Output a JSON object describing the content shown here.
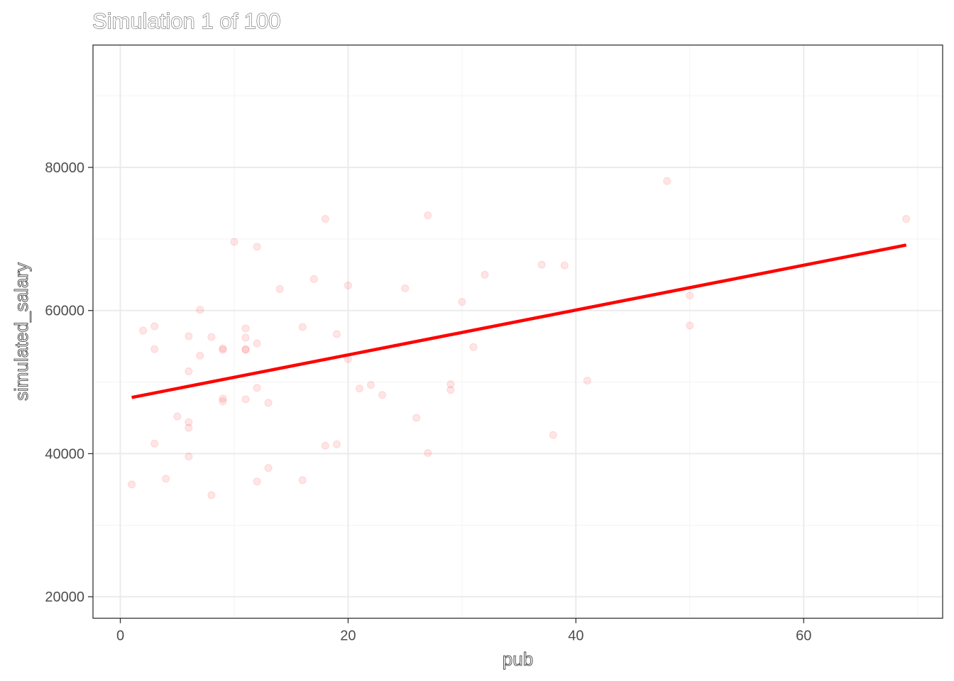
{
  "chart_data": {
    "type": "scatter",
    "title": "Simulation 1 of 100",
    "xlabel": "pub",
    "ylabel": "simulated_salary",
    "xlim": [
      -2.4,
      72.2
    ],
    "ylim": [
      17000,
      97100
    ],
    "x_major_ticks": [
      0,
      20,
      40,
      60
    ],
    "x_tick_labels": [
      "0",
      "20",
      "40",
      "60"
    ],
    "x_minor_ticks": [
      10,
      30,
      50,
      70
    ],
    "y_major_ticks": [
      20000,
      40000,
      60000,
      80000
    ],
    "y_tick_labels": [
      "20000",
      "40000",
      "60000",
      "80000"
    ],
    "y_minor_ticks": [
      30000,
      50000,
      70000,
      90000
    ],
    "grid": true,
    "points": {
      "color": "#ff0000",
      "opacity": 0.1,
      "x": [
        1,
        2,
        3,
        3,
        3,
        4,
        5,
        6,
        6,
        6,
        6,
        6,
        7,
        7,
        8,
        8,
        9,
        9,
        9,
        9,
        10,
        11,
        11,
        11,
        11,
        11,
        12,
        12,
        12,
        12,
        13,
        13,
        14,
        16,
        16,
        17,
        18,
        18,
        19,
        19,
        20,
        20,
        21,
        22,
        23,
        25,
        26,
        27,
        27,
        29,
        29,
        30,
        31,
        32,
        37,
        38,
        39,
        41,
        48,
        50,
        50,
        69
      ],
      "y": [
        35700,
        57200,
        57800,
        54600,
        41400,
        36500,
        45200,
        56400,
        51500,
        44400,
        43600,
        39600,
        60100,
        53700,
        56300,
        34200,
        54500,
        54700,
        47700,
        47300,
        69600,
        57500,
        56200,
        54600,
        54500,
        47600,
        68900,
        55400,
        49200,
        36100,
        47100,
        38000,
        63000,
        57700,
        36300,
        64400,
        72800,
        41100,
        56700,
        41300,
        63500,
        53200,
        49100,
        49600,
        48200,
        63100,
        45000,
        73300,
        40100,
        49700,
        48900,
        61200,
        54900,
        65000,
        66400,
        42600,
        66300,
        50200,
        78100,
        62100,
        57900,
        72800
      ]
    },
    "fit_line": {
      "color": "#ff0000",
      "x": [
        1,
        69
      ],
      "y": [
        47850,
        69150
      ]
    }
  }
}
